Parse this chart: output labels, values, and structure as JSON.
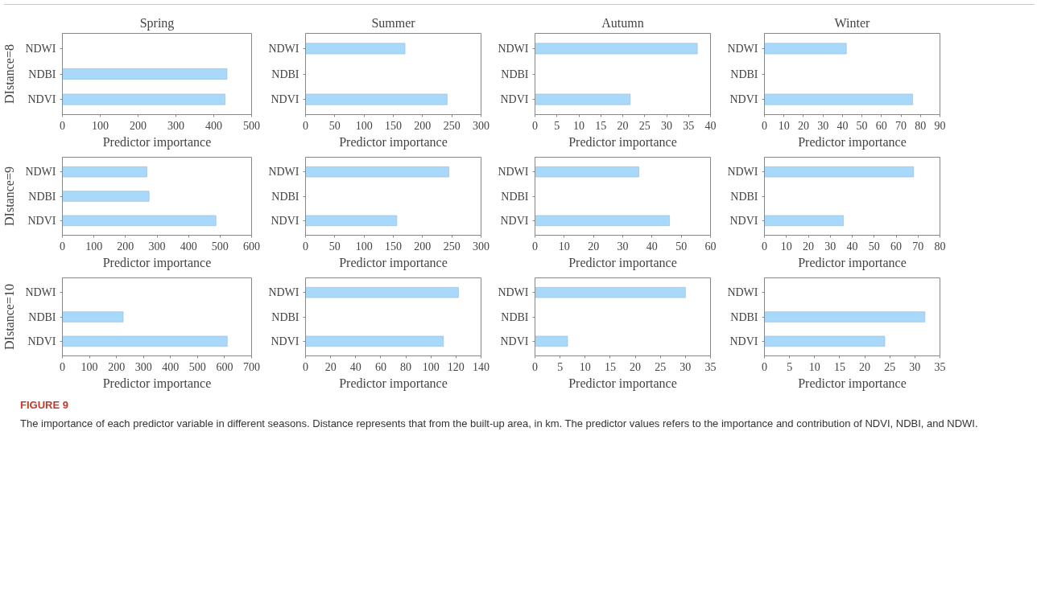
{
  "chart_data": [
    {
      "type": "bar",
      "orientation": "horizontal",
      "title": "Spring",
      "ylabel": "DIstance=8",
      "xlabel": "Predictor importance",
      "categories": [
        "NDWI",
        "NDBI",
        "NDVI"
      ],
      "values": [
        null,
        435,
        430
      ],
      "color": "#a8d8fa",
      "xlim": [
        0,
        500
      ],
      "xticks": [
        0,
        100,
        200,
        300,
        400,
        500
      ],
      "grid": false
    },
    {
      "type": "bar",
      "orientation": "horizontal",
      "title": "Summer",
      "xlabel": "Predictor importance",
      "categories": [
        "NDWI",
        "NDBI",
        "NDVI"
      ],
      "values": [
        170,
        null,
        242
      ],
      "color": "#a8d8fa",
      "xlim": [
        0,
        300
      ],
      "xticks": [
        0,
        50,
        100,
        150,
        200,
        250,
        300
      ],
      "grid": false
    },
    {
      "type": "bar",
      "orientation": "horizontal",
      "title": "Autumn",
      "xlabel": "Predictor importance",
      "categories": [
        "NDWI",
        "NDBI",
        "NDVI"
      ],
      "values": [
        37,
        null,
        21.7
      ],
      "color": "#a8d8fa",
      "xlim": [
        0,
        40
      ],
      "xticks": [
        0,
        5,
        10,
        15,
        20,
        25,
        30,
        35,
        40
      ],
      "grid": false
    },
    {
      "type": "bar",
      "orientation": "horizontal",
      "title": "Winter",
      "xlabel": "Predictor importance",
      "categories": [
        "NDWI",
        "NDBI",
        "NDVI"
      ],
      "values": [
        42,
        null,
        76
      ],
      "color": "#a8d8fa",
      "xlim": [
        0,
        90
      ],
      "xticks": [
        0,
        10,
        20,
        30,
        40,
        50,
        60,
        70,
        80,
        90
      ],
      "grid": false
    },
    {
      "type": "bar",
      "orientation": "horizontal",
      "ylabel": "DIstance=9",
      "xlabel": "Predictor importance",
      "categories": [
        "NDWI",
        "NDBI",
        "NDVI"
      ],
      "values": [
        268,
        275,
        487
      ],
      "color": "#a8d8fa",
      "xlim": [
        0,
        600
      ],
      "xticks": [
        0,
        100,
        200,
        300,
        400,
        500,
        600
      ],
      "grid": false
    },
    {
      "type": "bar",
      "orientation": "horizontal",
      "xlabel": "Predictor importance",
      "categories": [
        "NDWI",
        "NDBI",
        "NDVI"
      ],
      "values": [
        245,
        null,
        156
      ],
      "color": "#a8d8fa",
      "xlim": [
        0,
        300
      ],
      "xticks": [
        0,
        50,
        100,
        150,
        200,
        250,
        300
      ],
      "grid": false
    },
    {
      "type": "bar",
      "orientation": "horizontal",
      "xlabel": "Predictor importance",
      "categories": [
        "NDWI",
        "NDBI",
        "NDVI"
      ],
      "values": [
        35.5,
        null,
        46
      ],
      "color": "#a8d8fa",
      "xlim": [
        0,
        60
      ],
      "xticks": [
        0,
        10,
        20,
        30,
        40,
        50,
        60
      ],
      "grid": false
    },
    {
      "type": "bar",
      "orientation": "horizontal",
      "xlabel": "Predictor importance",
      "categories": [
        "NDWI",
        "NDBI",
        "NDVI"
      ],
      "values": [
        68,
        null,
        36
      ],
      "color": "#a8d8fa",
      "xlim": [
        0,
        80
      ],
      "xticks": [
        0,
        10,
        20,
        30,
        40,
        50,
        60,
        70,
        80
      ],
      "grid": false
    },
    {
      "type": "bar",
      "orientation": "horizontal",
      "ylabel": "DIstance=10",
      "xlabel": "Predictor importance",
      "categories": [
        "NDWI",
        "NDBI",
        "NDVI"
      ],
      "values": [
        null,
        225,
        610
      ],
      "color": "#a8d8fa",
      "xlim": [
        0,
        700
      ],
      "xticks": [
        0,
        100,
        200,
        300,
        400,
        500,
        600,
        700
      ],
      "grid": false
    },
    {
      "type": "bar",
      "orientation": "horizontal",
      "xlabel": "Predictor importance",
      "categories": [
        "NDWI",
        "NDBI",
        "NDVI"
      ],
      "values": [
        122,
        null,
        110
      ],
      "color": "#a8d8fa",
      "xlim": [
        0,
        140
      ],
      "xticks": [
        0,
        20,
        40,
        60,
        80,
        100,
        120,
        140
      ],
      "grid": false
    },
    {
      "type": "bar",
      "orientation": "horizontal",
      "xlabel": "Predictor importance",
      "categories": [
        "NDWI",
        "NDBI",
        "NDVI"
      ],
      "values": [
        30,
        null,
        6.5
      ],
      "color": "#a8d8fa",
      "xlim": [
        0,
        35
      ],
      "xticks": [
        0,
        5,
        10,
        15,
        20,
        25,
        30,
        35
      ],
      "grid": false
    },
    {
      "type": "bar",
      "orientation": "horizontal",
      "xlabel": "Predictor importance",
      "categories": [
        "NDWI",
        "NDBI",
        "NDVI"
      ],
      "values": [
        null,
        32,
        24
      ],
      "color": "#a8d8fa",
      "xlim": [
        0,
        35
      ],
      "xticks": [
        0,
        5,
        10,
        15,
        20,
        25,
        30,
        35
      ],
      "grid": false
    },
    {
      "type": "other",
      "annotations": [
        "FIGURE 9",
        "The importance of each predictor variable in different seasons. Distance represents that from the built-up area, in km. The predictor values refers to the importance and contribution of NDVI, NDBI, and NDWI."
      ]
    }
  ]
}
